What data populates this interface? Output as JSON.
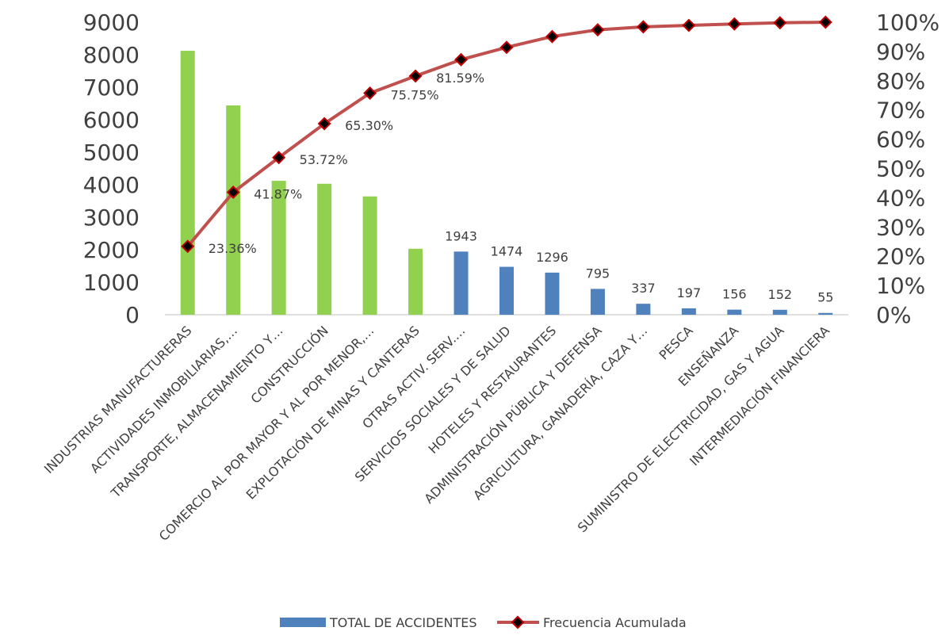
{
  "chart_data": {
    "type": "bar",
    "categories": [
      "INDUSTRIAS MANUFACTURERAS",
      "ACTIVIDADES INMOBILIARIAS,…",
      "TRANSPORTE, ALMACENAMIENTO Y…",
      "CONSTRUCCIÓN",
      "COMERCIO AL POR MAYOR Y AL POR MENOR,…",
      "EXPLOTACIÓN DE MINAS Y CANTERAS",
      "OTRAS ACTIV. SERV.…",
      "SERVICIOS SOCIALES Y DE SALUD",
      "HOTELES Y RESTAURANTES",
      "ADMINISTRACIÓN PÚBLICA Y DEFENSA",
      "AGRICULTURA, GANADERÍA, CAZA Y…",
      "PESCA",
      "ENSEÑANZA",
      "SUMINISTRO DE ELECTRICIDAD, GAS Y AGUA",
      "INTERMEDIACIÓN FINANCIERA"
    ],
    "series": [
      {
        "name": "TOTAL DE ACCIDENTES",
        "kind": "bar",
        "axis": "left",
        "values": [
          8120,
          6440,
          4120,
          4030,
          3640,
          2030,
          1943,
          1474,
          1296,
          795,
          337,
          197,
          156,
          152,
          55
        ],
        "bar_colors": [
          "#92d050",
          "#92d050",
          "#92d050",
          "#92d050",
          "#92d050",
          "#92d050",
          "#4f81bd",
          "#4f81bd",
          "#4f81bd",
          "#4f81bd",
          "#4f81bd",
          "#4f81bd",
          "#4f81bd",
          "#4f81bd",
          "#4f81bd"
        ],
        "labels": [
          "",
          "",
          "",
          "",
          "",
          "",
          "1943",
          "1474",
          "1296",
          "795",
          "337",
          "197",
          "156",
          "152",
          "55"
        ],
        "legend_color": "#4f81bd"
      },
      {
        "name": "Frecuencia Acumulada",
        "kind": "line",
        "axis": "right",
        "values": [
          23.36,
          41.87,
          53.72,
          65.3,
          75.75,
          81.59,
          87.2,
          91.4,
          95.1,
          97.4,
          98.4,
          98.9,
          99.4,
          99.8,
          100.0
        ],
        "labels": [
          "23.36%",
          "41.87%",
          "53.72%",
          "65.30%",
          "75.75%",
          "81.59%",
          "",
          "",
          "",
          "",
          "",
          "",
          "",
          "",
          ""
        ],
        "line_color": "#c0504d",
        "marker_color": "#000000"
      }
    ],
    "left_axis": {
      "ylim": [
        0,
        9000
      ],
      "ticks": [
        "0",
        "1000",
        "2000",
        "3000",
        "4000",
        "5000",
        "6000",
        "7000",
        "8000",
        "9000"
      ]
    },
    "right_axis": {
      "ylim": [
        0,
        100
      ],
      "ticks": [
        "0%",
        "10%",
        "20%",
        "30%",
        "40%",
        "50%",
        "60%",
        "70%",
        "80%",
        "90%",
        "100%"
      ]
    },
    "grid": false,
    "legend_position": "bottom-center"
  }
}
